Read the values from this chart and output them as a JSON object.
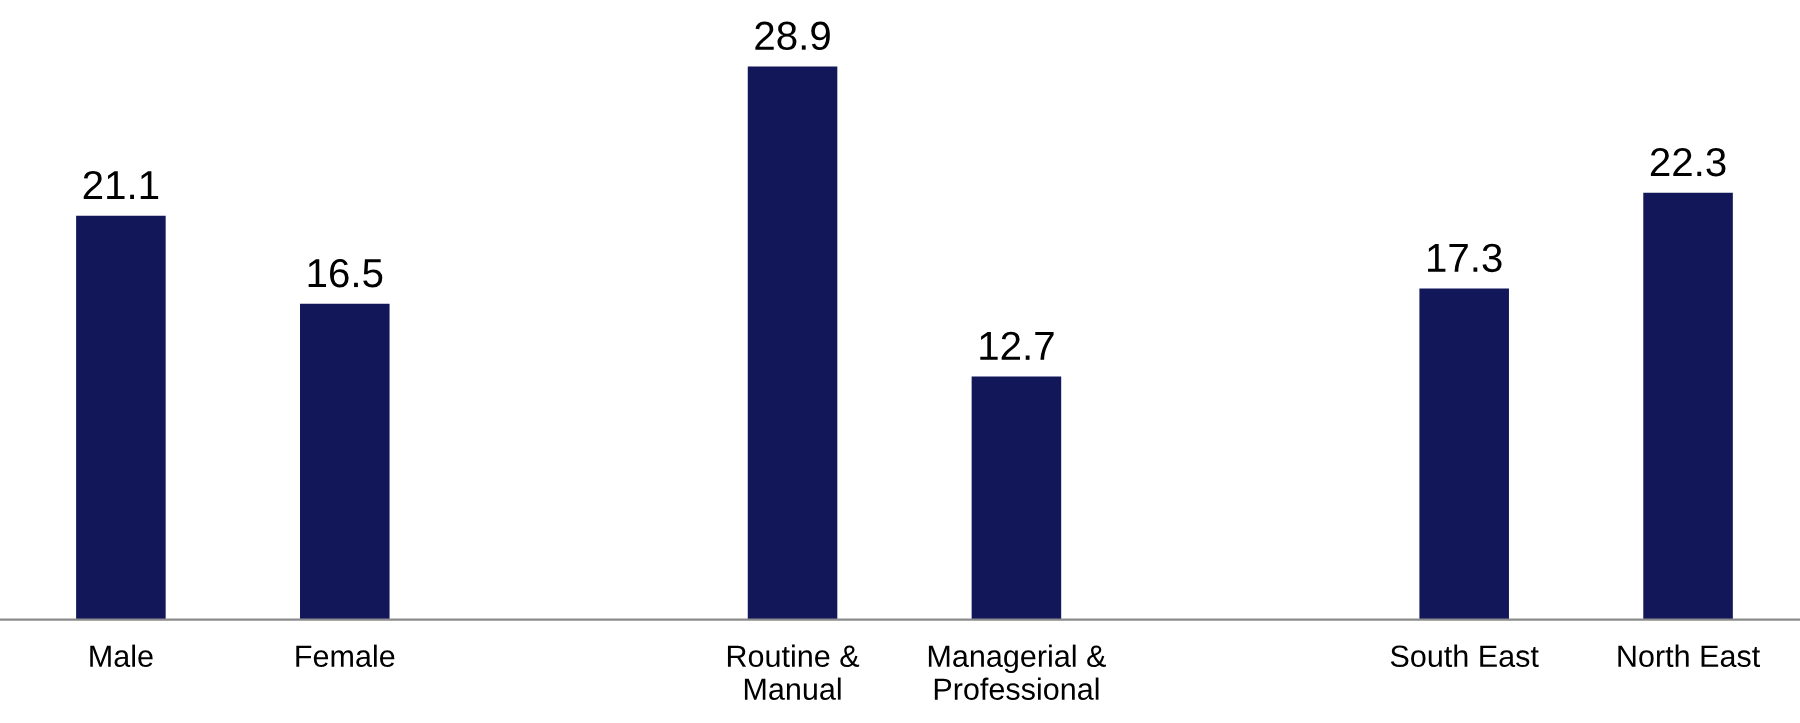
{
  "chart_data": {
    "type": "bar",
    "categories": [
      "Male",
      "Female",
      null,
      "Routine &\nManual",
      "Managerial &\nProfessional",
      null,
      "South East",
      "North East"
    ],
    "values": [
      21.1,
      16.5,
      null,
      28.9,
      12.7,
      null,
      17.3,
      22.3
    ],
    "color": "#12175a",
    "data_labels": true,
    "grid": false,
    "legend": false
  }
}
